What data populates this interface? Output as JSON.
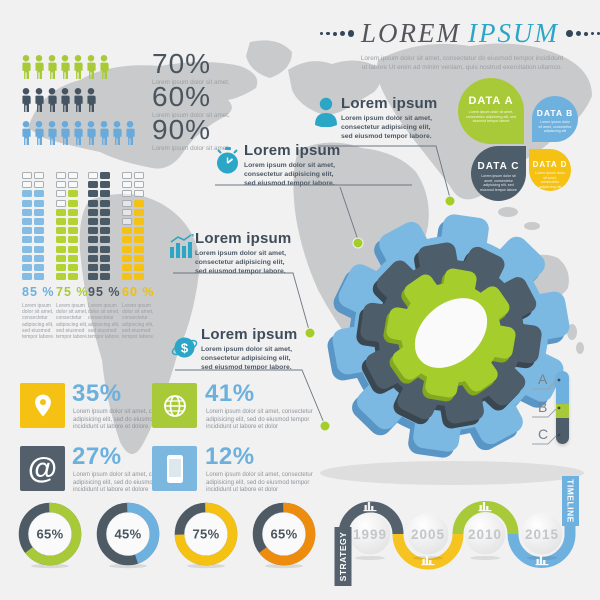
{
  "header": {
    "title_gray": "LOREM",
    "title_teal": "IPSUM",
    "subtitle_line1": "Lorem ipsum dolor sit amet, consectetur do eiusmod tempor incididunt",
    "subtitle_line2": "ut labore Ut enim ad minim veniam, quis nostrud exercitation ullamco."
  },
  "people_rows": [
    {
      "percent": "70%",
      "caption": "Lorem ipsum dolor sit amet,",
      "count": 7,
      "color": "#a9ca38"
    },
    {
      "percent": "60%",
      "caption": "Lorem ipsum dolor sit amet,",
      "count": 6,
      "color": "#445463"
    },
    {
      "percent": "90%",
      "caption": "Lorem ipsum dolor sit amet,",
      "count": 9,
      "color": "#68aadb"
    }
  ],
  "grid_chart": {
    "rows": 12,
    "groups": [
      {
        "percent": "85 %",
        "label_color": "#6cb0dd",
        "fill_color": "#85bce4",
        "filled": [
          10,
          10
        ],
        "body": "Lorem ipsum dolor sit amet, consectetur adipiscing elit, sed eiusmod tempor labore."
      },
      {
        "percent": "75 %",
        "label_color": "#a9ca38",
        "fill_color": "#b3d334",
        "filled": [
          8,
          10
        ],
        "body": "Lorem ipsum dolor sit amet, consectetur adipiscing elit, sed eiusmod tempor labore."
      },
      {
        "percent": "95 %",
        "label_color": "#4a5560",
        "fill_color": "#4a5a66",
        "filled": [
          11,
          12
        ],
        "body": "Lorem ipsum dolor sit amet, consectetur adipiscing elit, sed eiusmod tempor labore."
      },
      {
        "percent": "60 %",
        "label_color": "#f3c000",
        "fill_color": "#f5c113",
        "filled": [
          6,
          9
        ],
        "body": "Lorem ipsum dolor sit amet, consectetur adipiscing elit, sed eiusmod tempor labore."
      }
    ]
  },
  "callouts": [
    {
      "icon": "person-icon",
      "heading": "Lorem ipsum",
      "body": "Lorem ipsum dolor sit amet, consectetur adipisicing elit, sed eiusmod tempor labore."
    },
    {
      "icon": "stopwatch-icon",
      "heading": "Lorem ipsum",
      "body": "Lorem ipsum dolor sit amet, consectetur adipisicing elit, sed eiusmod tempor labore."
    },
    {
      "icon": "bar-chart-icon",
      "heading": "Lorem ipsum",
      "body": "Lorem ipsum dolor sit amet, consectetur adipisicing elit, sed eiusmod tempor labore."
    },
    {
      "icon": "dollar-globe-icon",
      "heading": "Lorem ipsum",
      "body": "Lorem ipsum dolor sit amet, consectetur adipisicing elit, sed eiusmod tempor labore."
    }
  ],
  "data_petals": [
    {
      "label": "DATA A",
      "color": "#a9ca38",
      "body": "Lorem ipsum dolor sit amet, consectetur adipisicing elit, sed eiusmod tempor labore"
    },
    {
      "label": "DATA B",
      "color": "#6fb1de",
      "body": "Lorem ipsum dolor sit amet, consectetur adipisicing elit"
    },
    {
      "label": "DATA C",
      "color": "#4d5d6a",
      "body": "Lorem ipsum dolor sit amet, consectetur adipisicing elit, sed eiusmod tempor labore"
    },
    {
      "label": "DATA D",
      "color": "#f5c113",
      "body": "Lorem ipsum dolor sit amet, consectetur adipisicing elit"
    }
  ],
  "stats": [
    {
      "icon": "location-pin-icon",
      "tile_color": "#f5c113",
      "percent": "35%",
      "body": "Lorem ipsum dolor sit amet, consectetur adipisicing elit, sed do eiusmod tempor incididunt ut labore et dolore"
    },
    {
      "icon": "globe-icon",
      "tile_color": "#a9ca38",
      "percent": "41%",
      "body": "Lorem ipsum dolor sit amet, consectetur adipisicing elit, sed do eiusmod tempor incididunt ut labore et dolor"
    },
    {
      "icon": "at-sign-icon",
      "tile_color": "#535f6a",
      "percent": "27%",
      "body": "Lorem ipsum dolor sit amet, consectetur adipisicing elit, sed do eiusmod tempor incididunt ut labore et dolore"
    },
    {
      "icon": "smartphone-icon",
      "tile_color": "#7cb7e0",
      "percent": "12%",
      "body": "Lorem ipsum dolor sit amet, consectetur adipisicing elit, sed do eiusmod tempor incididunt ut labore et dolor"
    }
  ],
  "donuts": [
    {
      "percent": "65%",
      "value": 65,
      "color": "#a9ca38"
    },
    {
      "percent": "45%",
      "value": 45,
      "color": "#6fb1de"
    },
    {
      "percent": "75%",
      "value": 75,
      "color": "#f5c113"
    },
    {
      "percent": "65%",
      "value": 65,
      "color": "#ee8c0e"
    }
  ],
  "abc_meter": {
    "labels": [
      "A",
      "B",
      "C"
    ],
    "segments": [
      {
        "color": "#6fb1de",
        "h": 33
      },
      {
        "color": "#a9ca38",
        "h": 14
      },
      {
        "color": "#4d5d6a",
        "h": 26
      }
    ]
  },
  "timeline": {
    "strategy_label": "STRATEGY",
    "timeline_label": "TIMELINE",
    "milestones": [
      {
        "year": "1999",
        "color": "#55616c",
        "icon_pos": "top"
      },
      {
        "year": "2005",
        "color": "#f5c421",
        "icon_pos": "bottom"
      },
      {
        "year": "2010",
        "color": "#a9ca38",
        "icon_pos": "top"
      },
      {
        "year": "2015",
        "color": "#6fb1de",
        "icon_pos": "bottom"
      }
    ]
  },
  "colors": {
    "background": "#f1f1f2",
    "map": "#c9cacb",
    "teal": "#2ba6c6",
    "gear_outer": "#7cb9e2",
    "gear_outer_shade": "#5995c5",
    "gear_mid": "#4d5d6a",
    "gear_mid_shade": "#3a4751",
    "gear_inner": "#a5ce2c",
    "gear_inner_shade": "#83a720",
    "connector": "#6b7682",
    "dot_green": "#a3cd28",
    "donut_rest": "#4e5a64"
  },
  "chart_data": [
    {
      "type": "bar",
      "variant": "pictograph",
      "categories": [
        "70%",
        "60%",
        "90%"
      ],
      "values": [
        70,
        60,
        90
      ],
      "icon_counts": [
        7,
        6,
        9
      ],
      "colors": [
        "#a9ca38",
        "#445463",
        "#68aadb"
      ],
      "title": "",
      "xlabel": "",
      "ylabel": ""
    },
    {
      "type": "bar",
      "variant": "waffle-columns",
      "categories": [
        "85 %",
        "75 %",
        "95 %",
        "60 %"
      ],
      "values": [
        85,
        75,
        95,
        60
      ],
      "rows": 12,
      "columns_per_group": 2,
      "colors": [
        "#85bce4",
        "#b3d334",
        "#4a5a66",
        "#f5c113"
      ]
    },
    {
      "type": "pie",
      "variant": "donut",
      "labels": [
        "65%",
        "45%",
        "75%",
        "65%"
      ],
      "values": [
        65,
        45,
        75,
        65
      ],
      "colors": [
        "#a9ca38",
        "#6fb1de",
        "#f5c113",
        "#ee8c0e"
      ],
      "remainder_color": "#4e5a64"
    },
    {
      "type": "bar",
      "variant": "stat-numbers",
      "categories": [
        "35%",
        "41%",
        "27%",
        "12%"
      ],
      "values": [
        35,
        41,
        27,
        12
      ]
    },
    {
      "type": "line",
      "variant": "timeline",
      "x": [
        "1999",
        "2005",
        "2010",
        "2015"
      ],
      "labels_side": [
        "STRATEGY",
        "TIMELINE"
      ]
    },
    {
      "type": "bar",
      "variant": "abc-meter",
      "categories": [
        "A",
        "B",
        "C"
      ],
      "values": [
        45,
        19,
        36
      ]
    }
  ]
}
